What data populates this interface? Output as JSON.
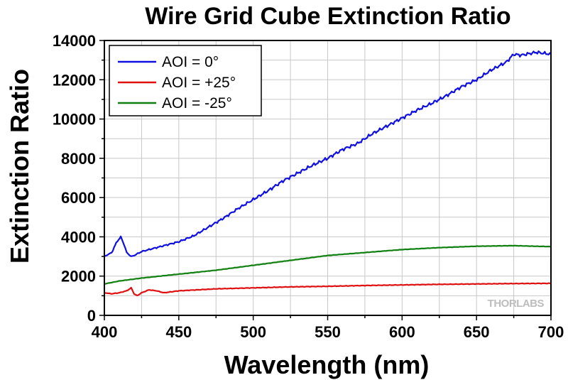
{
  "chart_data": {
    "type": "line",
    "title": "Wire Grid Cube Extinction Ratio",
    "xlabel": "Wavelength (nm)",
    "ylabel": "Extinction Ratio",
    "xlim": [
      400,
      700
    ],
    "ylim": [
      0,
      14000
    ],
    "xticks": [
      400,
      450,
      500,
      550,
      600,
      650,
      700
    ],
    "yticks": [
      0,
      2000,
      4000,
      6000,
      8000,
      10000,
      12000,
      14000
    ],
    "grid": true,
    "legend_position": "top-left",
    "watermark": "THORLABS",
    "series": [
      {
        "name": "AOI = 0°",
        "color": "#1010e0",
        "x": [
          400,
          405,
          408,
          411,
          413,
          415,
          418,
          420,
          425,
          430,
          440,
          450,
          460,
          470,
          480,
          490,
          500,
          510,
          520,
          530,
          540,
          550,
          560,
          570,
          580,
          590,
          600,
          610,
          620,
          630,
          640,
          650,
          660,
          670,
          675,
          680,
          690,
          700
        ],
        "y": [
          3000,
          3200,
          3700,
          4000,
          3650,
          3200,
          3000,
          3050,
          3250,
          3350,
          3550,
          3750,
          4050,
          4500,
          4950,
          5450,
          5900,
          6350,
          6850,
          7250,
          7650,
          8000,
          8450,
          8750,
          9250,
          9650,
          10050,
          10450,
          10800,
          11200,
          11650,
          12000,
          12500,
          12900,
          13300,
          13250,
          13400,
          13300
        ]
      },
      {
        "name": "AOI = +25°",
        "color": "#e01010",
        "x": [
          400,
          405,
          410,
          415,
          418,
          420,
          422,
          425,
          430,
          435,
          440,
          450,
          475,
          500,
          525,
          550,
          575,
          600,
          625,
          650,
          675,
          700
        ],
        "y": [
          1150,
          1100,
          1150,
          1250,
          1400,
          1100,
          1000,
          1150,
          1300,
          1250,
          1150,
          1250,
          1350,
          1400,
          1450,
          1480,
          1520,
          1550,
          1580,
          1600,
          1620,
          1630
        ]
      },
      {
        "name": "AOI = -25°",
        "color": "#108010",
        "x": [
          400,
          410,
          425,
          450,
          475,
          500,
          525,
          550,
          575,
          600,
          625,
          650,
          675,
          700
        ],
        "y": [
          1600,
          1750,
          1900,
          2100,
          2300,
          2550,
          2800,
          3050,
          3200,
          3350,
          3450,
          3520,
          3550,
          3500
        ]
      }
    ]
  }
}
